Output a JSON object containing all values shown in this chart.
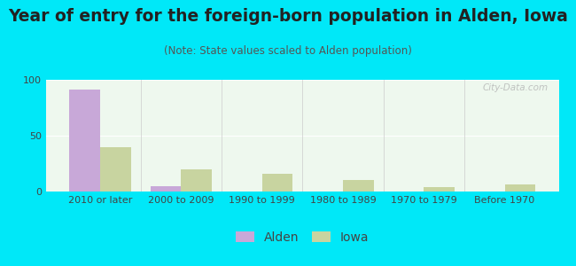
{
  "title": "Year of entry for the foreign-born population in Alden, Iowa",
  "subtitle": "(Note: State values scaled to Alden population)",
  "categories": [
    "2010 or later",
    "2000 to 2009",
    "1990 to 1999",
    "1980 to 1989",
    "1970 to 1979",
    "Before 1970"
  ],
  "alden_values": [
    91,
    5,
    0,
    0,
    0,
    0
  ],
  "iowa_values": [
    40,
    20,
    16,
    10,
    4,
    6
  ],
  "alden_color": "#c8a8d8",
  "iowa_color": "#c8d4a0",
  "background_outer": "#00e8f8",
  "background_inner": "#eef8ee",
  "ylim": [
    0,
    100
  ],
  "yticks": [
    0,
    50,
    100
  ],
  "bar_width": 0.38,
  "watermark_text": "City-Data.com",
  "legend_labels": [
    "Alden",
    "Iowa"
  ],
  "title_fontsize": 13.5,
  "subtitle_fontsize": 8.5,
  "tick_fontsize": 8,
  "legend_fontsize": 10,
  "title_color": "#222222",
  "subtitle_color": "#555555",
  "tick_color": "#444444"
}
